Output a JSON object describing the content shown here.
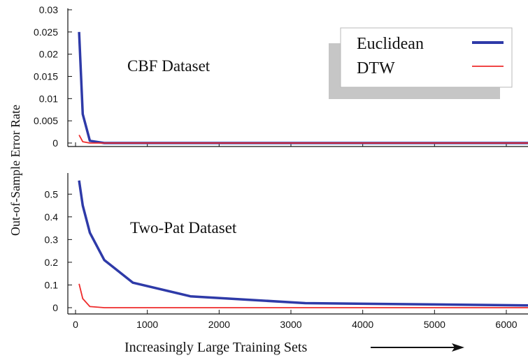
{
  "chart_data": [
    {
      "type": "line",
      "title": "CBF Dataset",
      "ylabel": "Out-of-Sample Error Rate",
      "xlabel": "Increasingly Large Training Sets",
      "xlim": [
        0,
        6400
      ],
      "ylim": [
        0,
        0.03
      ],
      "yticks": [
        0,
        0.005,
        0.01,
        0.015,
        0.02,
        0.025,
        0.03
      ],
      "ytick_labels": [
        "0",
        "0.005",
        "0.01",
        "0.015",
        "0.02",
        "0.025",
        "0.03"
      ],
      "xticks": [
        0,
        1000,
        2000,
        3000,
        4000,
        5000,
        6000
      ],
      "legend_position": "top-right",
      "grid": false,
      "series": [
        {
          "name": "Euclidean",
          "color": "#2e3aa8",
          "x": [
            50,
            100,
            200,
            400,
            800,
            1600,
            3200,
            6400
          ],
          "y": [
            0.025,
            0.0065,
            0.0005,
            0.0,
            0.0,
            0.0,
            0.0,
            0.0
          ]
        },
        {
          "name": "DTW",
          "color": "#ee2b2b",
          "x": [
            50,
            100,
            200,
            400,
            800,
            1600,
            3200,
            6400
          ],
          "y": [
            0.0018,
            0.0003,
            0.0,
            0.0,
            0.0,
            0.0,
            0.0,
            0.0
          ]
        }
      ]
    },
    {
      "type": "line",
      "title": "Two-Pat Dataset",
      "ylabel": "Out-of-Sample Error Rate",
      "xlabel": "Increasingly Large Training Sets",
      "xlim": [
        0,
        6400
      ],
      "ylim": [
        0,
        0.55
      ],
      "yticks": [
        0,
        0.1,
        0.2,
        0.3,
        0.4,
        0.5
      ],
      "ytick_labels": [
        "0",
        "0.1",
        "0.2",
        "0.3",
        "0.4",
        "0.5"
      ],
      "xticks": [
        0,
        1000,
        2000,
        3000,
        4000,
        5000,
        6000
      ],
      "xtick_labels": [
        "0",
        "1000",
        "2000",
        "3000",
        "4000",
        "5000",
        "6000"
      ],
      "grid": false,
      "series": [
        {
          "name": "Euclidean",
          "color": "#2e3aa8",
          "x": [
            50,
            100,
            200,
            400,
            800,
            1600,
            3200,
            6400
          ],
          "y": [
            0.56,
            0.45,
            0.33,
            0.21,
            0.11,
            0.05,
            0.02,
            0.01
          ]
        },
        {
          "name": "DTW",
          "color": "#ee2b2b",
          "x": [
            50,
            100,
            200,
            400,
            800,
            1600,
            3200,
            6400
          ],
          "y": [
            0.105,
            0.04,
            0.005,
            0.0,
            0.0,
            0.0,
            0.0,
            0.0
          ]
        }
      ]
    }
  ]
}
